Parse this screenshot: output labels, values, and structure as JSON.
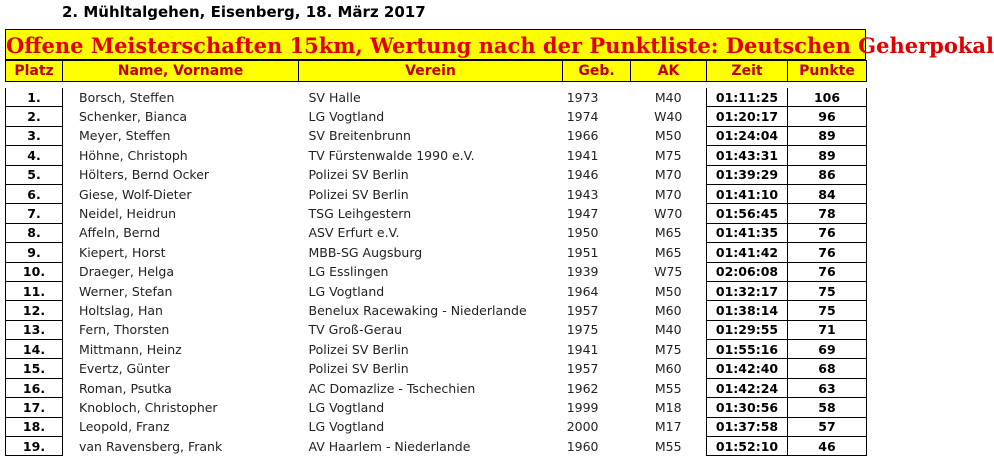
{
  "event_line": "2. Mühltalgehen, Eisenberg, 18. März 2017",
  "banner": "Offene Meisterschaften 15km, Wertung nach der Punktliste: Deutschen Geherpokal",
  "headers": {
    "platz": "Platz",
    "name": "Name, Vorname",
    "verein": "Verein",
    "geb": "Geb.",
    "ak": "AK",
    "zeit": "Zeit",
    "punkte": "Punkte"
  },
  "colors": {
    "banner_bg": "#ffff00",
    "banner_text": "#e00000",
    "header_text": "#c00000"
  },
  "rows": [
    {
      "platz": "1.",
      "name": "Borsch, Steffen",
      "verein": "SV Halle",
      "geb": "1973",
      "ak": "M40",
      "zeit": "01:11:25",
      "punkte": "106"
    },
    {
      "platz": "2.",
      "name": "Schenker, Bianca",
      "verein": "LG Vogtland",
      "geb": "1974",
      "ak": "W40",
      "zeit": "01:20:17",
      "punkte": "96"
    },
    {
      "platz": "3.",
      "name": "Meyer, Steffen",
      "verein": "SV Breitenbrunn",
      "geb": "1966",
      "ak": "M50",
      "zeit": "01:24:04",
      "punkte": "89"
    },
    {
      "platz": "4.",
      "name": "Höhne, Christoph",
      "verein": "TV Fürstenwalde 1990 e.V.",
      "geb": "1941",
      "ak": "M75",
      "zeit": "01:43:31",
      "punkte": "89"
    },
    {
      "platz": "5.",
      "name": "Hölters, Bernd Ocker",
      "verein": "Polizei SV Berlin",
      "geb": "1946",
      "ak": "M70",
      "zeit": "01:39:29",
      "punkte": "86"
    },
    {
      "platz": "6.",
      "name": "Giese, Wolf-Dieter",
      "verein": "Polizei SV Berlin",
      "geb": "1943",
      "ak": "M70",
      "zeit": "01:41:10",
      "punkte": "84"
    },
    {
      "platz": "7.",
      "name": "Neidel, Heidrun",
      "verein": "TSG Leihgestern",
      "geb": "1947",
      "ak": "W70",
      "zeit": "01:56:45",
      "punkte": "78"
    },
    {
      "platz": "8.",
      "name": "Affeln, Bernd",
      "verein": "ASV Erfurt e.V.",
      "geb": "1950",
      "ak": "M65",
      "zeit": "01:41:35",
      "punkte": "76"
    },
    {
      "platz": "9.",
      "name": "Kiepert, Horst",
      "verein": "MBB-SG Augsburg",
      "geb": "1951",
      "ak": "M65",
      "zeit": "01:41:42",
      "punkte": "76"
    },
    {
      "platz": "10.",
      "name": "Draeger, Helga",
      "verein": "LG Esslingen",
      "geb": "1939",
      "ak": "W75",
      "zeit": "02:06:08",
      "punkte": "76"
    },
    {
      "platz": "11.",
      "name": "Werner, Stefan",
      "verein": "LG Vogtland",
      "geb": "1964",
      "ak": "M50",
      "zeit": "01:32:17",
      "punkte": "75"
    },
    {
      "platz": "12.",
      "name": "Holtslag, Han",
      "verein": "Benelux Racewaking - Niederlande",
      "geb": "1957",
      "ak": "M60",
      "zeit": "01:38:14",
      "punkte": "75"
    },
    {
      "platz": "13.",
      "name": "Fern, Thorsten",
      "verein": "TV Groß-Gerau",
      "geb": "1975",
      "ak": "M40",
      "zeit": "01:29:55",
      "punkte": "71"
    },
    {
      "platz": "14.",
      "name": "Mittmann, Heinz",
      "verein": "Polizei SV Berlin",
      "geb": "1941",
      "ak": "M75",
      "zeit": "01:55:16",
      "punkte": "69"
    },
    {
      "platz": "15.",
      "name": "Evertz, Günter",
      "verein": "Polizei SV Berlin",
      "geb": "1957",
      "ak": "M60",
      "zeit": "01:42:40",
      "punkte": "68"
    },
    {
      "platz": "16.",
      "name": "Roman, Psutka",
      "verein": "AC Domazlize - Tschechien",
      "geb": "1962",
      "ak": "M55",
      "zeit": "01:42:24",
      "punkte": "63"
    },
    {
      "platz": "17.",
      "name": "Knobloch, Christopher",
      "verein": "LG Vogtland",
      "geb": "1999",
      "ak": "M18",
      "zeit": "01:30:56",
      "punkte": "58"
    },
    {
      "platz": "18.",
      "name": "Leopold, Franz",
      "verein": "LG Vogtland",
      "geb": "2000",
      "ak": "M17",
      "zeit": "01:37:58",
      "punkte": "57"
    },
    {
      "platz": "19.",
      "name": "van Ravensberg, Frank",
      "verein": "AV Haarlem - Niederlande",
      "geb": "1960",
      "ak": "M55",
      "zeit": "01:52:10",
      "punkte": "46"
    }
  ]
}
